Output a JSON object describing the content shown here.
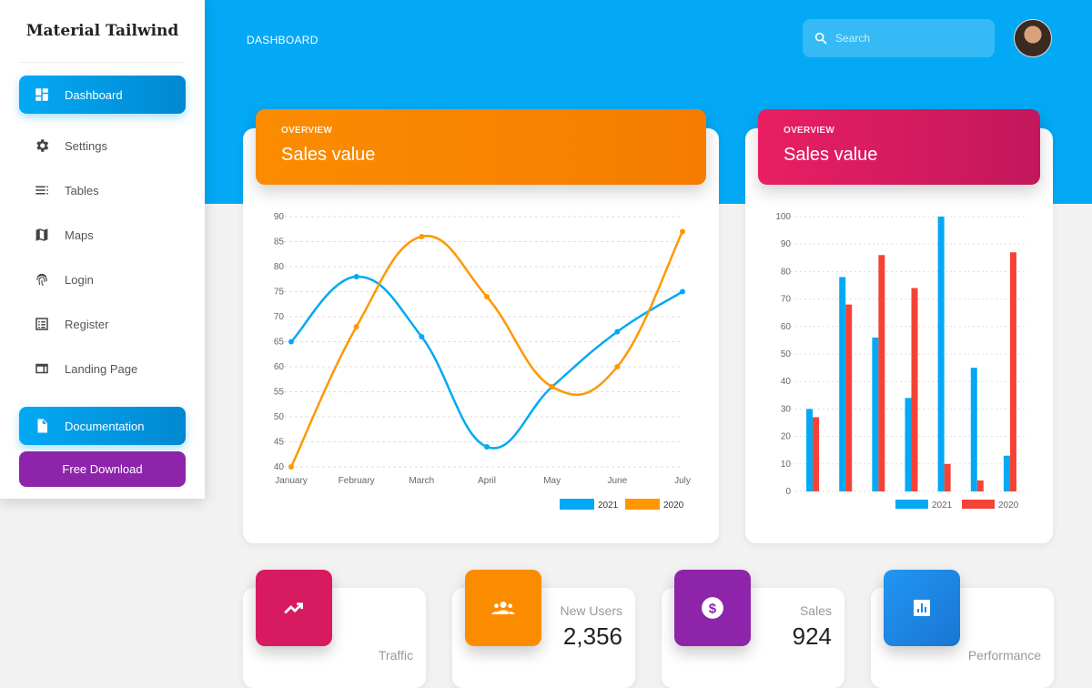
{
  "sidebar": {
    "brand": "Material Tailwind",
    "items": [
      {
        "label": "Dashboard",
        "icon": "dashboard-icon",
        "active": true
      },
      {
        "label": "Settings",
        "icon": "gear-icon"
      },
      {
        "label": "Tables",
        "icon": "list-icon"
      },
      {
        "label": "Maps",
        "icon": "map-icon"
      },
      {
        "label": "Login",
        "icon": "fingerprint-icon"
      },
      {
        "label": "Register",
        "icon": "form-icon"
      },
      {
        "label": "Landing Page",
        "icon": "web-icon"
      }
    ],
    "documentation": "Documentation",
    "free_download": "Free Download"
  },
  "header": {
    "breadcrumb": "DASHBOARD",
    "search_placeholder": "Search"
  },
  "colors": {
    "accent": "#03a9f4",
    "orange": "#fb8c00",
    "pink": "#d81b60",
    "purple": "#8e24aa",
    "red": "#f44336"
  },
  "line_card": {
    "overline": "OVERVIEW",
    "title": "Sales value"
  },
  "bar_card": {
    "overline": "OVERVIEW",
    "title": "Sales value"
  },
  "chart_data": [
    {
      "type": "line",
      "categories": [
        "January",
        "February",
        "March",
        "April",
        "May",
        "June",
        "July"
      ],
      "ylim": [
        40,
        90
      ],
      "yticks": [
        40,
        45,
        50,
        55,
        60,
        65,
        70,
        75,
        80,
        85,
        90
      ],
      "grid": true,
      "legend": "bottom-right",
      "series": [
        {
          "name": "2021",
          "color": "#03a9f4",
          "values": [
            65,
            78,
            66,
            44,
            56,
            67,
            75
          ]
        },
        {
          "name": "2020",
          "color": "#ff9800",
          "values": [
            40,
            68,
            86,
            74,
            56,
            60,
            87
          ]
        }
      ]
    },
    {
      "type": "bar",
      "categories": [
        "",
        "",
        "",
        "",
        "",
        "",
        ""
      ],
      "ylim": [
        0,
        100
      ],
      "yticks": [
        0,
        10,
        20,
        30,
        40,
        50,
        60,
        70,
        80,
        90,
        100
      ],
      "grid": true,
      "legend": "bottom-right",
      "series": [
        {
          "name": "2021",
          "color": "#03a9f4",
          "values": [
            30,
            78,
            56,
            34,
            100,
            45,
            13
          ]
        },
        {
          "name": "2020",
          "color": "#f44336",
          "values": [
            27,
            68,
            86,
            74,
            10,
            4,
            87
          ]
        }
      ]
    }
  ],
  "stats": [
    {
      "label": "Traffic",
      "value": "",
      "icon": "trending-up-icon",
      "color": "#d81b60"
    },
    {
      "label": "New Users",
      "value": "2,356",
      "icon": "users-icon",
      "color": "#fb8c00"
    },
    {
      "label": "Sales",
      "value": "924",
      "icon": "dollar-icon",
      "color": "#8e24aa"
    },
    {
      "label": "Performance",
      "value": "",
      "icon": "chart-icon",
      "color": "#1e88e5"
    }
  ]
}
